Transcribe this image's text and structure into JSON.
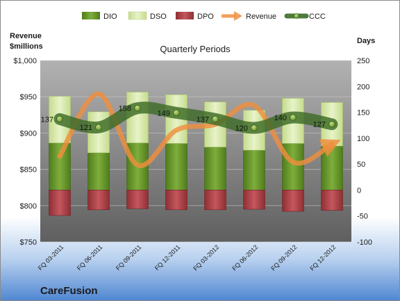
{
  "chart_data": {
    "type": "bar",
    "title": "Quarterly Periods",
    "company": "CareFusion",
    "left_axis_label_line1": "Revenue",
    "left_axis_label_line2": "$millions",
    "right_axis_label": "Days",
    "categories": [
      "FQ 03-2011",
      "FQ 06-2011",
      "FQ 09-2011",
      "FQ 12-2011",
      "FQ 03-2012",
      "FQ 06-2012",
      "FQ 09-2012",
      "FQ 12-2012"
    ],
    "left_ylim": [
      750,
      1000
    ],
    "left_ticks": [
      750,
      800,
      850,
      900,
      950,
      1000
    ],
    "left_tick_labels": [
      "$750",
      "$800",
      "$850",
      "$900",
      "$950",
      "$1,000"
    ],
    "right_ylim": [
      -100,
      250
    ],
    "right_ticks": [
      -100,
      -50,
      0,
      50,
      100,
      150,
      200,
      250
    ],
    "right_tick_labels": [
      "-100",
      "-50",
      "0",
      "50",
      "100",
      "150",
      "200",
      "250"
    ],
    "legend_position": "top",
    "series": [
      {
        "name": "DIO",
        "axis": "right",
        "kind": "stacked-bar",
        "color": "#6b9a2e",
        "values": [
          91,
          72,
          91,
          90,
          83,
          77,
          90,
          85
        ]
      },
      {
        "name": "DSO",
        "axis": "right",
        "kind": "stacked-bar",
        "color": "#d6e9a8",
        "values": [
          90,
          79,
          98,
          94,
          87,
          77,
          87,
          84
        ]
      },
      {
        "name": "DPO",
        "axis": "right",
        "kind": "negative-bar",
        "color": "#b0454b",
        "values": [
          -49,
          -38,
          -36,
          -38,
          -38,
          -37,
          -41,
          -39
        ]
      },
      {
        "name": "Revenue",
        "axis": "left",
        "kind": "line-arrow",
        "color": "#ef8f3e",
        "values": [
          868,
          954,
          856,
          904,
          912,
          938,
          860,
          885
        ]
      },
      {
        "name": "CCC",
        "axis": "right",
        "kind": "line-markers",
        "color": "#3d6b27",
        "values": [
          137,
          121,
          158,
          149,
          137,
          120,
          140,
          127
        ]
      }
    ],
    "data_labels": [
      "137",
      "121",
      "158",
      "149",
      "137",
      "120",
      "140",
      "127"
    ]
  }
}
